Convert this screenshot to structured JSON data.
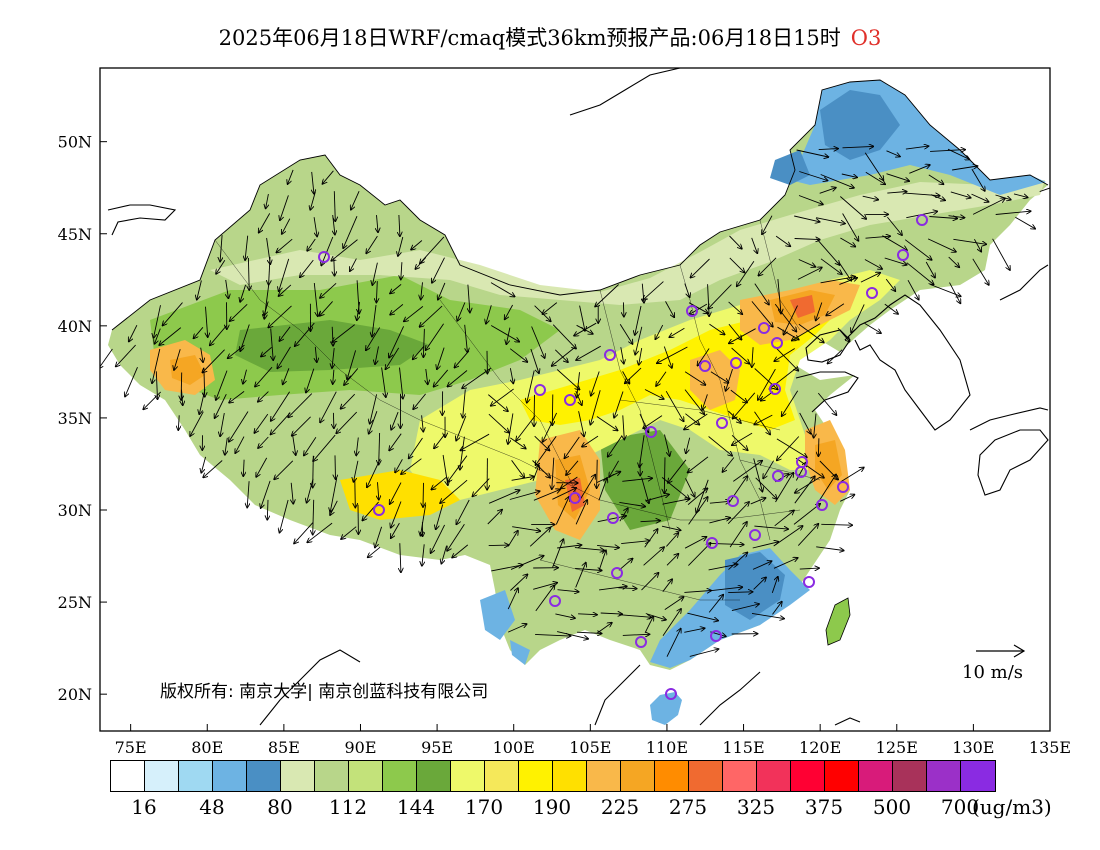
{
  "title": {
    "text": "2025年06月18日WRF/cmaq模式36km预报产品:06月18日15时",
    "species": "O3"
  },
  "map": {
    "lon_range": [
      73,
      135
    ],
    "lat_range": [
      18,
      54
    ],
    "x_ticks": [
      "75E",
      "80E",
      "85E",
      "90E",
      "95E",
      "100E",
      "105E",
      "110E",
      "115E",
      "120E",
      "125E",
      "130E",
      "135E"
    ],
    "y_ticks": [
      "20N",
      "25N",
      "30N",
      "35N",
      "40N",
      "45N",
      "50N"
    ],
    "copyright": "版权所有: 南京大学| 南京创蓝科技有限公司",
    "wind_reference": "10 m/s"
  },
  "colorbar": {
    "colors": [
      "#ffffff",
      "#d6f0fb",
      "#9fd9f2",
      "#6db3e3",
      "#4a8fc4",
      "#d9e8b2",
      "#b8d68a",
      "#c3e27a",
      "#8dc94c",
      "#6aa83a",
      "#eef96a",
      "#f5e85a",
      "#fff200",
      "#ffe000",
      "#f9b84a",
      "#f5a623",
      "#ff8c00",
      "#f06a30",
      "#ff6666",
      "#f2325a",
      "#ff0033",
      "#ff0000",
      "#d81b7a",
      "#a8325a",
      "#9b30c8",
      "#8a2be2"
    ],
    "labels": [
      "16",
      "48",
      "80",
      "112",
      "144",
      "170",
      "190",
      "225",
      "275",
      "325",
      "375",
      "500",
      "700"
    ],
    "unit": "(ug/m3)"
  }
}
